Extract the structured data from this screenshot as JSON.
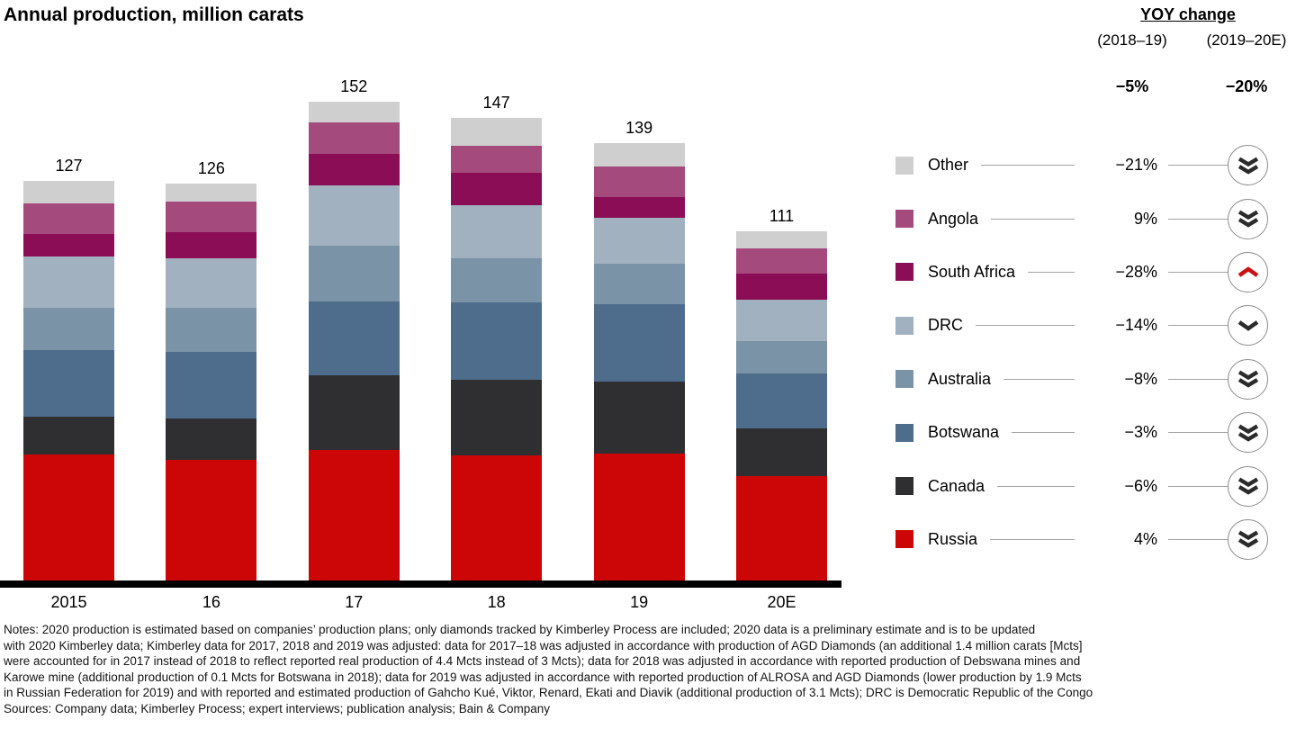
{
  "chart_data": {
    "type": "bar",
    "stacked": true,
    "title": "Annual production, million carats",
    "categories": [
      "2015",
      "16",
      "17",
      "18",
      "19",
      "20E"
    ],
    "totals": [
      127,
      126,
      152,
      147,
      139,
      111
    ],
    "series": [
      {
        "name": "Russia",
        "color": "#cc0606",
        "values": [
          40.1,
          38.3,
          41.5,
          39.8,
          40.3,
          33.2
        ]
      },
      {
        "name": "Canada",
        "color": "#2f2f31",
        "values": [
          11.8,
          13.0,
          23.5,
          24.0,
          22.9,
          15.2
        ]
      },
      {
        "name": "Botswana",
        "color": "#4e6d8c",
        "values": [
          21.2,
          21.2,
          23.5,
          24.6,
          24.4,
          17.3
        ]
      },
      {
        "name": "Australia",
        "color": "#7a93a6",
        "values": [
          13.5,
          14.0,
          17.8,
          13.8,
          12.9,
          10.4
        ]
      },
      {
        "name": "DRC",
        "color": "#a2b1c0",
        "values": [
          16.2,
          15.9,
          19.1,
          17.0,
          14.5,
          12.9
        ]
      },
      {
        "name": "South Africa",
        "color": "#8b0d55",
        "values": [
          7.3,
          8.2,
          9.9,
          10.1,
          6.7,
          8.3
        ]
      },
      {
        "name": "Angola",
        "color": "#a54a7c",
        "values": [
          9.7,
          9.7,
          10.1,
          8.7,
          9.7,
          8.1
        ]
      },
      {
        "name": "Other",
        "color": "#cfcfcf",
        "values": [
          7.2,
          5.7,
          6.6,
          9.0,
          7.6,
          5.6
        ]
      }
    ],
    "ylim": [
      0,
      160
    ],
    "grid": false,
    "legend_position": "right"
  },
  "yoy_header": {
    "title": "YOY change",
    "col1": "(2018–19)",
    "col2": "(2019–20E)",
    "total_col1": "−5%",
    "total_col2": "−20%"
  },
  "legend": {
    "rows": [
      {
        "label": "Other",
        "color": "#cfcfcf",
        "change": "−21%",
        "icon": "double-chevron-down",
        "icon_color": "#2b2b2b"
      },
      {
        "label": "Angola",
        "color": "#a54a7c",
        "change": "9%",
        "icon": "double-chevron-down",
        "icon_color": "#2b2b2b"
      },
      {
        "label": "South Africa",
        "color": "#8b0d55",
        "change": "−28%",
        "icon": "chevron-up",
        "icon_color": "#cc1113"
      },
      {
        "label": "DRC",
        "color": "#a2b1c0",
        "change": "−14%",
        "icon": "chevron-down",
        "icon_color": "#2b2b2b"
      },
      {
        "label": "Australia",
        "color": "#7a93a6",
        "change": "−8%",
        "icon": "double-chevron-down",
        "icon_color": "#2b2b2b"
      },
      {
        "label": "Botswana",
        "color": "#4e6d8c",
        "change": "−3%",
        "icon": "double-chevron-down",
        "icon_color": "#2b2b2b"
      },
      {
        "label": "Canada",
        "color": "#2f2f31",
        "change": "−6%",
        "icon": "double-chevron-down",
        "icon_color": "#2b2b2b"
      },
      {
        "label": "Russia",
        "color": "#cc0606",
        "change": "4%",
        "icon": "double-chevron-down",
        "icon_color": "#2b2b2b"
      }
    ]
  },
  "notes": {
    "lines": [
      "Notes: 2020 production is estimated based on companies’ production plans; only diamonds tracked by Kimberley Process are included; 2020 data is a preliminary estimate and is to be updated",
      "with 2020 Kimberley data; Kimberley data for 2017, 2018 and 2019 was adjusted: data for 2017–18 was adjusted in accordance with production of AGD Diamonds (an additional 1.4 million carats [Mcts]",
      "were accounted for in 2017 instead of 2018 to reflect reported real production of 4.4 Mcts instead of 3 Mcts); data for 2018 was adjusted in accordance with reported production of Debswana mines and",
      "Karowe mine (additional production of 0.1 Mcts for Botswana in 2018); data for 2019 was adjusted in accordance with reported production of ALROSA and AGD Diamonds (lower production by 1.9 Mcts",
      "in Russian Federation for 2019) and with reported and estimated production of Gahcho Kué, Viktor, Renard, Ekati and Diavik (additional production of 3.1 Mcts); DRC is Democratic Republic of the Congo",
      "Sources: Company data; Kimberley Process; expert interviews; publication analysis; Bain & Company"
    ]
  }
}
